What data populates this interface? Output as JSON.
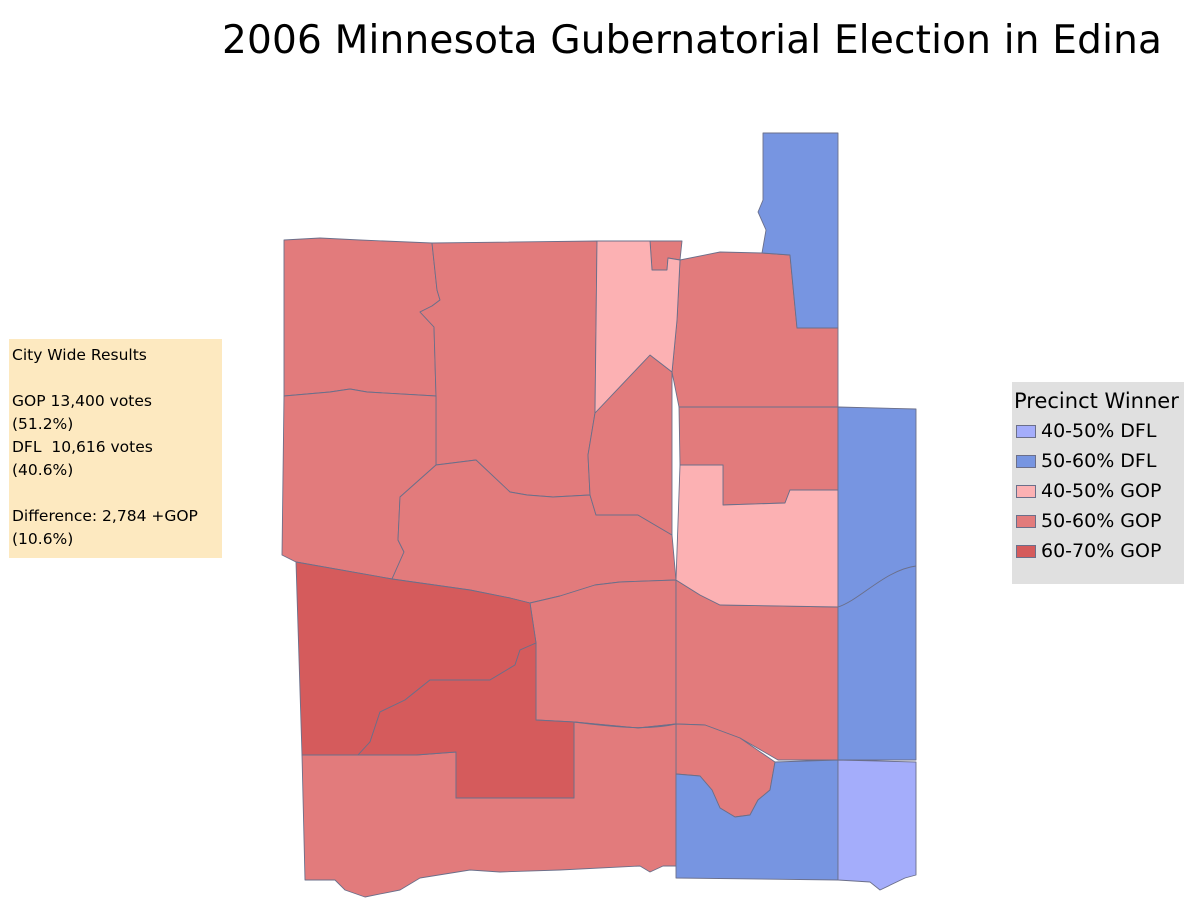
{
  "title": "2006 Minnesota Gubernatorial Election in Edina",
  "results": {
    "heading": "City Wide Results",
    "gop_votes": "GOP 13,400 votes",
    "gop_pct": "(51.2%)",
    "dfl_votes": "DFL  10,616 votes",
    "dfl_pct": "(40.6%)",
    "difference": "Difference: 2,784 +GOP",
    "difference_pct": "(10.6%)"
  },
  "legend": {
    "title": "Precinct Winner",
    "items": [
      {
        "label": "40-50% DFL",
        "color": "#a4adfb"
      },
      {
        "label": "50-60% DFL",
        "color": "#7795e1"
      },
      {
        "label": "40-50% GOP",
        "color": "#fcb1b3"
      },
      {
        "label": "50-60% GOP",
        "color": "#e27b7c"
      },
      {
        "label": "60-70% GOP",
        "color": "#d55b5c"
      }
    ]
  },
  "colors": {
    "dfl_40_50": "#a4adfb",
    "dfl_50_60": "#7795e1",
    "gop_40_50": "#fcb1b3",
    "gop_50_60": "#e27b7c",
    "gop_60_70": "#d55b5c"
  }
}
